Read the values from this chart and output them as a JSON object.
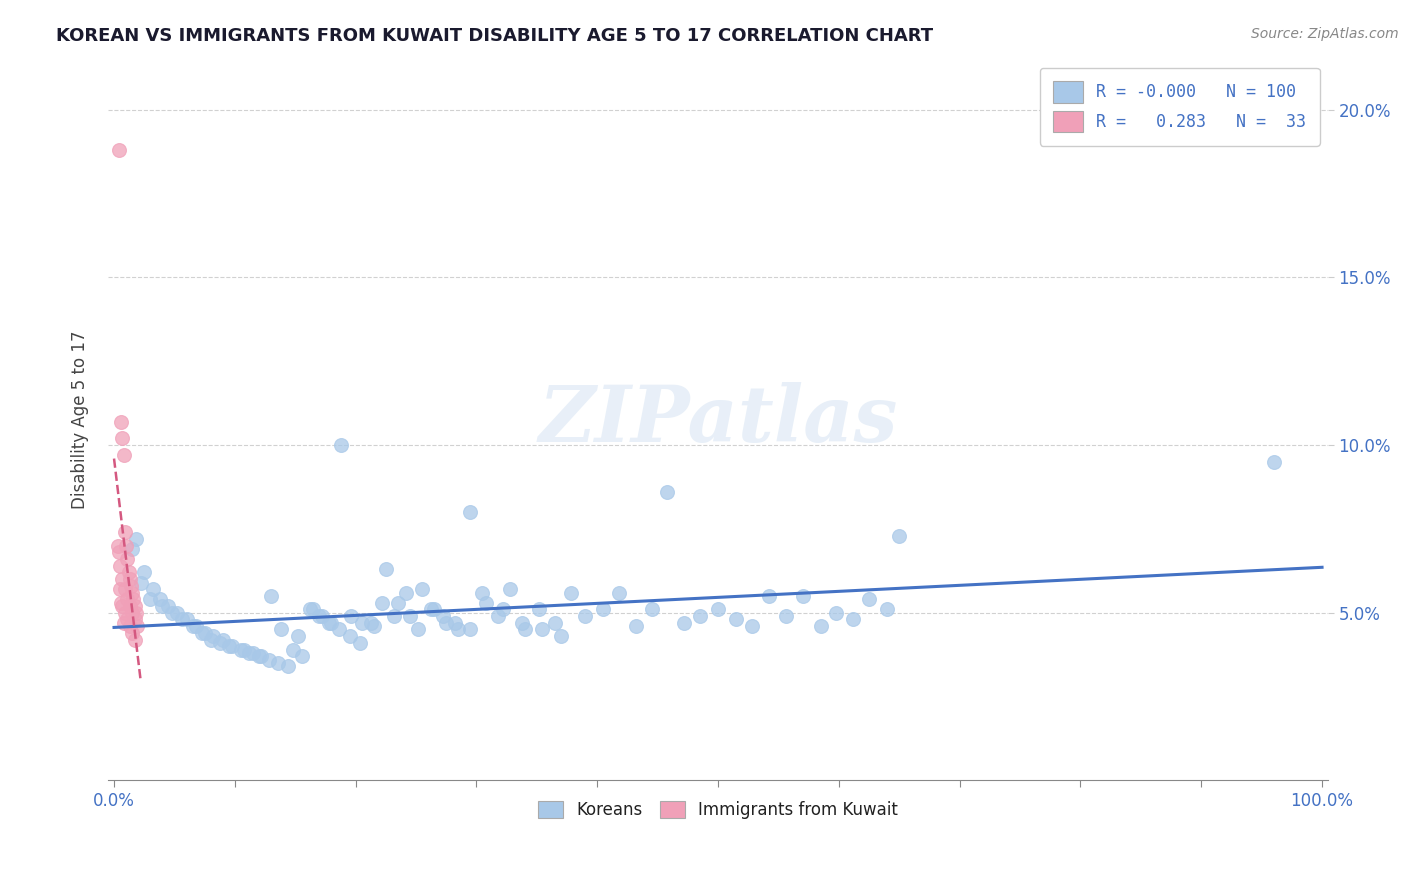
{
  "title": "KOREAN VS IMMIGRANTS FROM KUWAIT DISABILITY AGE 5 TO 17 CORRELATION CHART",
  "source": "Source: ZipAtlas.com",
  "ylabel": "Disability Age 5 to 17",
  "xlim": [
    -0.005,
    1.005
  ],
  "ylim": [
    0.0,
    0.215
  ],
  "yticks": [
    0.05,
    0.1,
    0.15,
    0.2
  ],
  "ytick_labels": [
    "5.0%",
    "10.0%",
    "15.0%",
    "20.0%"
  ],
  "xticks": [
    0.0,
    0.1,
    0.2,
    0.3,
    0.4,
    0.5,
    0.6,
    0.7,
    0.8,
    0.9,
    1.0
  ],
  "xtick_labels": [
    "0.0%",
    "",
    "",
    "",
    "",
    "",
    "",
    "",
    "",
    "",
    "100.0%"
  ],
  "legend_r_korean": "-0.000",
  "legend_n_korean": "100",
  "legend_r_kuwait": "0.283",
  "legend_n_kuwait": "33",
  "korean_color": "#a8c8e8",
  "kuwait_color": "#f0a0b8",
  "korean_line_color": "#4472c4",
  "kuwait_line_color": "#d45880",
  "watermark": "ZIPatlas",
  "korean_scatter_x": [
    0.018,
    0.025,
    0.032,
    0.038,
    0.045,
    0.052,
    0.06,
    0.068,
    0.075,
    0.082,
    0.09,
    0.098,
    0.108,
    0.115,
    0.122,
    0.13,
    0.138,
    0.148,
    0.156,
    0.165,
    0.172,
    0.18,
    0.188,
    0.196,
    0.205,
    0.215,
    0.225,
    0.235,
    0.245,
    0.255,
    0.265,
    0.275,
    0.285,
    0.295,
    0.305,
    0.318,
    0.328,
    0.34,
    0.352,
    0.365,
    0.378,
    0.39,
    0.405,
    0.418,
    0.432,
    0.445,
    0.458,
    0.472,
    0.485,
    0.5,
    0.515,
    0.528,
    0.542,
    0.556,
    0.57,
    0.585,
    0.598,
    0.612,
    0.625,
    0.64,
    0.015,
    0.022,
    0.03,
    0.04,
    0.048,
    0.056,
    0.065,
    0.073,
    0.08,
    0.088,
    0.095,
    0.105,
    0.112,
    0.12,
    0.128,
    0.136,
    0.144,
    0.152,
    0.162,
    0.17,
    0.178,
    0.186,
    0.195,
    0.204,
    0.213,
    0.222,
    0.232,
    0.242,
    0.252,
    0.262,
    0.272,
    0.282,
    0.295,
    0.308,
    0.322,
    0.338,
    0.354,
    0.37,
    0.96,
    0.65
  ],
  "korean_scatter_y": [
    0.072,
    0.062,
    0.057,
    0.054,
    0.052,
    0.05,
    0.048,
    0.046,
    0.044,
    0.043,
    0.042,
    0.04,
    0.039,
    0.038,
    0.037,
    0.055,
    0.045,
    0.039,
    0.037,
    0.051,
    0.049,
    0.047,
    0.1,
    0.049,
    0.047,
    0.046,
    0.063,
    0.053,
    0.049,
    0.057,
    0.051,
    0.047,
    0.045,
    0.08,
    0.056,
    0.049,
    0.057,
    0.045,
    0.051,
    0.047,
    0.056,
    0.049,
    0.051,
    0.056,
    0.046,
    0.051,
    0.086,
    0.047,
    0.049,
    0.051,
    0.048,
    0.046,
    0.055,
    0.049,
    0.055,
    0.046,
    0.05,
    0.048,
    0.054,
    0.051,
    0.069,
    0.059,
    0.054,
    0.052,
    0.05,
    0.048,
    0.046,
    0.044,
    0.042,
    0.041,
    0.04,
    0.039,
    0.038,
    0.037,
    0.036,
    0.035,
    0.034,
    0.043,
    0.051,
    0.049,
    0.047,
    0.045,
    0.043,
    0.041,
    0.047,
    0.053,
    0.049,
    0.056,
    0.045,
    0.051,
    0.049,
    0.047,
    0.045,
    0.053,
    0.051,
    0.047,
    0.045,
    0.043,
    0.095,
    0.073
  ],
  "kuwait_scatter_x": [
    0.004,
    0.006,
    0.007,
    0.008,
    0.009,
    0.01,
    0.011,
    0.012,
    0.013,
    0.014,
    0.015,
    0.016,
    0.017,
    0.018,
    0.003,
    0.005,
    0.007,
    0.009,
    0.011,
    0.013,
    0.015,
    0.017,
    0.019,
    0.005,
    0.007,
    0.009,
    0.011,
    0.013,
    0.015,
    0.017,
    0.004,
    0.006,
    0.008
  ],
  "kuwait_scatter_y": [
    0.188,
    0.107,
    0.102,
    0.097,
    0.074,
    0.07,
    0.066,
    0.062,
    0.06,
    0.058,
    0.056,
    0.054,
    0.052,
    0.05,
    0.07,
    0.064,
    0.06,
    0.057,
    0.054,
    0.052,
    0.05,
    0.048,
    0.046,
    0.057,
    0.052,
    0.05,
    0.048,
    0.046,
    0.044,
    0.042,
    0.068,
    0.053,
    0.047
  ]
}
